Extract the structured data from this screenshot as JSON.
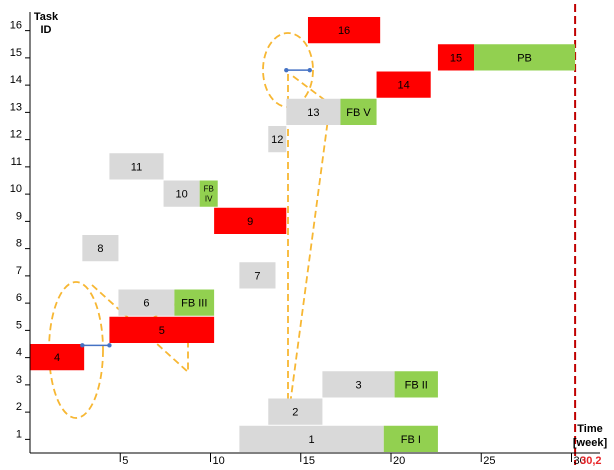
{
  "chart_data": {
    "type": "gantt",
    "ylabel": [
      "Task",
      "ID"
    ],
    "xlabel": [
      "Time",
      "[week]"
    ],
    "xlim": [
      0,
      32
    ],
    "ylim": [
      0,
      16.6
    ],
    "x_ticks": [
      5,
      10,
      15,
      20,
      25,
      30
    ],
    "y_ticks": [
      1,
      2,
      3,
      4,
      5,
      6,
      7,
      8,
      9,
      10,
      11,
      12,
      13,
      14,
      15,
      16
    ],
    "deadline": {
      "x": 30.2,
      "label": "30,2"
    },
    "colors": {
      "grey": "#d9d9d9",
      "red": "#ff0000",
      "green": "#92d050",
      "deadline": "#c00000",
      "highlight": "#f7b733",
      "link": "#4472c4"
    },
    "bars": [
      {
        "label": "1",
        "start": 11.6,
        "end": 19.6,
        "row": 0,
        "color": "grey"
      },
      {
        "label": "FB I",
        "start": 19.6,
        "end": 22.6,
        "row": 0,
        "color": "green"
      },
      {
        "label": "2",
        "start": 13.2,
        "end": 16.2,
        "row": 1,
        "color": "grey"
      },
      {
        "label": "3",
        "start": 16.2,
        "end": 20.2,
        "row": 2,
        "color": "grey"
      },
      {
        "label": "FB II",
        "start": 20.2,
        "end": 22.6,
        "row": 2,
        "color": "green"
      },
      {
        "label": "4",
        "start": 0,
        "end": 3.0,
        "row": 3,
        "color": "red"
      },
      {
        "label": "5",
        "start": 4.4,
        "end": 10.2,
        "row": 4,
        "color": "red"
      },
      {
        "label": "6",
        "start": 4.9,
        "end": 8.0,
        "row": 5,
        "color": "grey"
      },
      {
        "label": "FB III",
        "start": 8.0,
        "end": 10.2,
        "row": 5,
        "color": "green"
      },
      {
        "label": "7",
        "start": 11.6,
        "end": 13.6,
        "row": 6,
        "color": "grey"
      },
      {
        "label": "8",
        "start": 2.9,
        "end": 4.9,
        "row": 7,
        "color": "grey"
      },
      {
        "label": "9",
        "start": 10.2,
        "end": 14.2,
        "row": 8,
        "color": "red"
      },
      {
        "label": "10",
        "start": 7.4,
        "end": 9.4,
        "row": 9,
        "color": "grey"
      },
      {
        "label": "FB IV",
        "start": 9.4,
        "end": 10.4,
        "row": 9,
        "color": "green"
      },
      {
        "label": "11",
        "start": 4.4,
        "end": 7.4,
        "row": 10,
        "color": "grey"
      },
      {
        "label": "12",
        "start": 13.2,
        "end": 14.2,
        "row": 11,
        "color": "grey"
      },
      {
        "label": "13",
        "start": 14.2,
        "end": 17.2,
        "row": 12,
        "color": "grey"
      },
      {
        "label": "FB V",
        "start": 17.2,
        "end": 19.2,
        "row": 12,
        "color": "green"
      },
      {
        "label": "14",
        "start": 19.2,
        "end": 22.2,
        "row": 13,
        "color": "red"
      },
      {
        "label": "15",
        "start": 22.6,
        "end": 24.6,
        "row": 14,
        "color": "red"
      },
      {
        "label": "PB",
        "start": 24.6,
        "end": 30.2,
        "row": 14,
        "color": "green"
      },
      {
        "label": "16",
        "start": 15.4,
        "end": 19.4,
        "row": 15,
        "color": "red"
      }
    ],
    "links": [
      {
        "x1": 2.9,
        "x2": 4.4,
        "y": 3.95
      },
      {
        "x1": 14.2,
        "x2": 15.5,
        "y": 14.05
      }
    ]
  }
}
